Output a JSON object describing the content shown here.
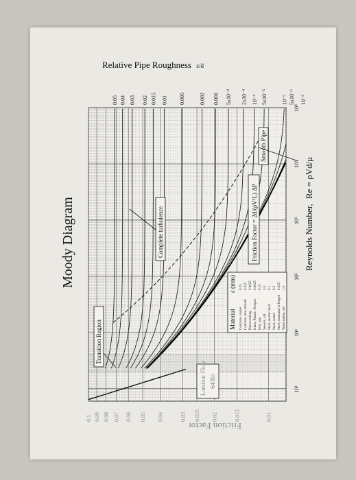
{
  "chart_data": {
    "type": "line",
    "title": "Moody Diagram",
    "xlabel": "Reynolds Number,",
    "xlabel_formula": "Re = ρVd/μ",
    "ylabel": "Friction Factor",
    "right_axis_label": "Relative Pipe Roughness",
    "right_axis_symbol": "ε/d",
    "xscale": "log",
    "yscale": "log",
    "xlim": [
      600,
      100000000
    ],
    "ylim": [
      0.008,
      0.1
    ],
    "x_ticks": [
      "10³",
      "10⁴",
      "10⁵",
      "10⁶",
      "10⁷",
      "10⁸"
    ],
    "x_tick_values": [
      1000,
      10000,
      100000,
      1000000,
      10000000,
      100000000
    ],
    "y_ticks": [
      "0.01",
      "0.015",
      "0.02",
      "0.025",
      "0.03",
      "0.04",
      "0.05",
      "0.06",
      "0.07",
      "0.08",
      "0.09",
      "0.1"
    ],
    "y_tick_values": [
      0.01,
      0.015,
      0.02,
      0.025,
      0.03,
      0.04,
      0.05,
      0.06,
      0.07,
      0.08,
      0.09,
      0.1
    ],
    "roughness_labels": [
      "0.05",
      "0.04",
      "0.03",
      "0.02",
      "0.015",
      "0.01",
      "0.005",
      "0.002",
      "0.001",
      "5x10⁻⁴",
      "2x10⁻⁴",
      "10⁻⁴",
      "5x10⁻⁵",
      "10⁻⁵",
      "5x10⁻⁶",
      "10⁻⁶"
    ],
    "roughness_values": [
      0.05,
      0.04,
      0.03,
      0.02,
      0.015,
      0.01,
      0.005,
      0.002,
      0.001,
      0.0005,
      0.0002,
      0.0001,
      5e-05,
      1e-05,
      5e-06,
      1e-06
    ],
    "grid": true,
    "annotations": {
      "transition": "Transition Region",
      "laminar": "Laminar Flow",
      "laminar_formula": "64/Re",
      "complete": "Complete turbulence",
      "friction_formula": "Friction Factor = 2d/(ρV²L) ΔP",
      "smooth": "Smooth Pipe"
    },
    "material_table": {
      "headers": [
        "Material",
        "ε (mm)"
      ],
      "rows": [
        [
          "Concrete, coarse",
          "0.25"
        ],
        [
          "Concrete, new smooth",
          "0.025"
        ],
        [
          "Drawn tubing",
          "0.0025"
        ],
        [
          "Glass, Plastic, Perspex",
          "0.0025"
        ],
        [
          "Iron, cast",
          "0.15"
        ],
        [
          "Sewers, old",
          "3.0"
        ],
        [
          "Steel, mortar lined",
          "0.1"
        ],
        [
          "Steel, rusted",
          "0.5"
        ],
        [
          "Steel, structural or forged",
          "0.025"
        ],
        [
          "Water mains, old",
          "1.0"
        ]
      ]
    }
  }
}
